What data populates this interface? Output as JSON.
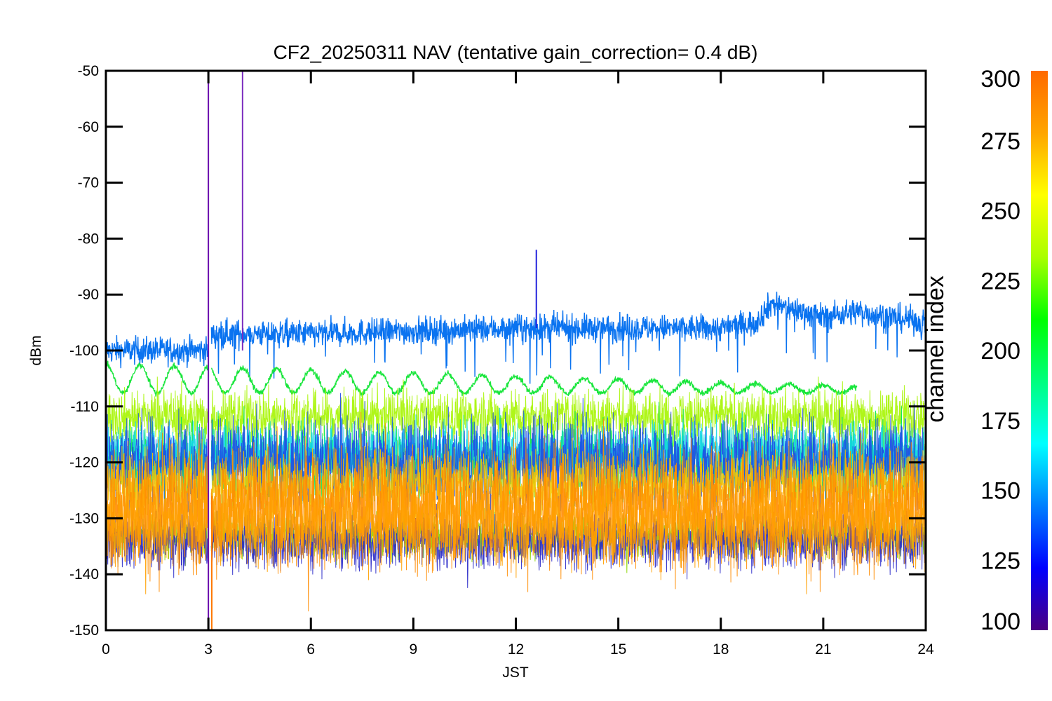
{
  "chart_data": {
    "type": "line",
    "title": "CF2_20250311 NAV (tentative gain_correction=  0.4 dB)",
    "xlabel": "JST",
    "ylabel": "dBm",
    "xlim": [
      0,
      24
    ],
    "ylim": [
      -150,
      -50
    ],
    "x_ticks": [
      0,
      3,
      6,
      9,
      12,
      15,
      18,
      21,
      24
    ],
    "y_ticks": [
      -50,
      -60,
      -70,
      -80,
      -90,
      -100,
      -110,
      -120,
      -130,
      -140,
      -150
    ],
    "x_tick_labels": [
      "0",
      "3",
      "6",
      "9",
      "12",
      "15",
      "18",
      "21",
      "24"
    ],
    "y_tick_labels": [
      "-50",
      "-60",
      "-70",
      "-80",
      "-90",
      "-100",
      "-110",
      "-120",
      "-130",
      "-140",
      "-150"
    ],
    "grid": false,
    "colorbar": {
      "title": "channel index",
      "range": [
        100,
        300
      ],
      "ticks": [
        100,
        125,
        150,
        175,
        200,
        225,
        250,
        275,
        300
      ],
      "tick_labels": [
        "100",
        "125",
        "150",
        "175",
        "200",
        "225",
        "250",
        "275",
        "300"
      ],
      "placement": "right",
      "colors": [
        "#4b0082",
        "#0000ff",
        "#007fff",
        "#00ffff",
        "#00ff7f",
        "#00ff00",
        "#aaff00",
        "#ffff00",
        "#ffa500",
        "#ff6a00"
      ]
    },
    "gaps": [
      [
        2.98,
        3.08
      ]
    ],
    "series": [
      {
        "channel": 150,
        "color": "#0a73f0",
        "points": [
          [
            0,
            -100
          ],
          [
            3,
            -100
          ],
          [
            3.1,
            -97
          ],
          [
            6,
            -97
          ],
          [
            9,
            -96.5
          ],
          [
            12,
            -96
          ],
          [
            15,
            -96
          ],
          [
            18,
            -96
          ],
          [
            19,
            -95
          ],
          [
            19.5,
            -91.5
          ],
          [
            20,
            -92.5
          ],
          [
            21,
            -94
          ],
          [
            22,
            -93
          ],
          [
            24,
            -95
          ]
        ],
        "noise": 1.2,
        "dips": true
      },
      {
        "channel": 220,
        "color": "#19e63c",
        "oscillation": {
          "center_start": -105,
          "center_end": -107,
          "amp_start": 2.6,
          "amp_end": 0.6,
          "period": 1.0,
          "x_start": 0,
          "x_end": 22
        }
      },
      {
        "channel": 248,
        "color": "#a6f500",
        "band": [
          -111.8,
          2.3
        ]
      },
      {
        "channel": 200,
        "color": "#00e65a",
        "band": [
          -120,
          3.5
        ]
      },
      {
        "channel": 175,
        "color": "#11d6e6",
        "band": [
          -118,
          2.5
        ]
      },
      {
        "channel": 145,
        "color": "#1e4be6",
        "band": [
          -120,
          4
        ]
      },
      {
        "channel": 270,
        "color": "#f5c800",
        "band": [
          -124,
          3
        ]
      },
      {
        "channel": 255,
        "color": "#8ad600",
        "band": [
          -133,
          2
        ]
      },
      {
        "channel": 130,
        "color": "#2828c8",
        "band": [
          -134,
          2.5
        ]
      },
      {
        "channel": 290,
        "color": "#ff8c00",
        "band": [
          -128,
          5.5
        ]
      },
      {
        "channel": 280,
        "color": "#ffa000",
        "band": [
          -130,
          4
        ]
      }
    ],
    "spikes": [
      {
        "x": 3.0,
        "y_top": -50,
        "y_bottom": -150,
        "color": "#6a0dad"
      },
      {
        "x": 4.0,
        "y_top": -50,
        "y_bottom": -100,
        "color": "#7b2cbf"
      },
      {
        "x": 12.6,
        "y_top": -82,
        "y_bottom": -96,
        "color": "#2222dd"
      },
      {
        "x": 3.1,
        "y_top": -126,
        "y_bottom": -150,
        "color": "#ff7a00"
      }
    ]
  }
}
